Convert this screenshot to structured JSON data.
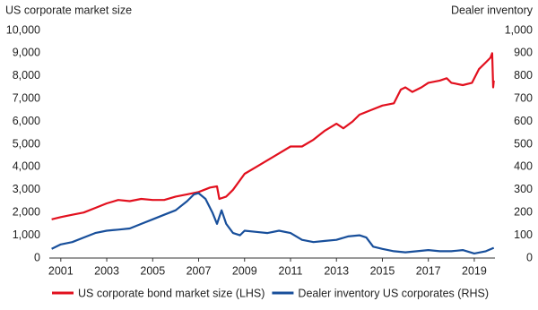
{
  "chart_data": {
    "type": "line",
    "y_label": "US corporate market size",
    "y2_label": "Dealer inventory",
    "xlim": [
      2000.5,
      2019.9
    ],
    "xticks": [
      2001,
      2003,
      2005,
      2007,
      2009,
      2011,
      2013,
      2015,
      2017,
      2019
    ],
    "ylim": [
      0,
      10000
    ],
    "yticks": [
      0,
      {
        "value": 1000,
        "label": "1,000"
      },
      {
        "value": 2000,
        "label": "2,000"
      },
      {
        "value": 3000,
        "label": "3,000"
      },
      {
        "value": 4000,
        "label": "4,000"
      },
      {
        "value": 5000,
        "label": "5,000"
      },
      {
        "value": 6000,
        "label": "6,000"
      },
      {
        "value": 7000,
        "label": "7,000"
      },
      {
        "value": 8000,
        "label": "8,000"
      },
      {
        "value": 9000,
        "label": "9,000"
      },
      {
        "value": 10000,
        "label": "10,000"
      }
    ],
    "y2lim": [
      0,
      1000
    ],
    "y2ticks": [
      0,
      100,
      200,
      300,
      400,
      500,
      600,
      700,
      800,
      900,
      {
        "value": 1000,
        "label": "1,000"
      }
    ],
    "grid": false,
    "series": [
      {
        "name": "US corporate bond market size (LHS)",
        "color": "#e2101e",
        "axis": "y",
        "x": [
          2000.6,
          2001,
          2001.5,
          2002,
          2002.5,
          2003,
          2003.5,
          2004,
          2004.5,
          2005,
          2005.5,
          2006,
          2006.5,
          2007,
          2007.5,
          2007.8,
          2007.9,
          2008.2,
          2008.5,
          2009,
          2009.5,
          2010,
          2010.5,
          2011,
          2011.5,
          2012,
          2012.5,
          2013,
          2013.3,
          2013.7,
          2014,
          2014.5,
          2015,
          2015.5,
          2015.8,
          2016,
          2016.3,
          2016.7,
          2017,
          2017.5,
          2017.8,
          2018,
          2018.5,
          2018.9,
          2019.2,
          2019.5,
          2019.7,
          2019.78,
          2019.82,
          2019.85
        ],
        "values": [
          1700,
          1800,
          1900,
          2000,
          2200,
          2400,
          2550,
          2500,
          2600,
          2550,
          2550,
          2700,
          2800,
          2900,
          3100,
          3150,
          2600,
          2700,
          3000,
          3700,
          4000,
          4300,
          4600,
          4900,
          4900,
          5200,
          5600,
          5900,
          5700,
          6000,
          6300,
          6500,
          6700,
          6800,
          7400,
          7500,
          7300,
          7500,
          7700,
          7800,
          7900,
          7700,
          7600,
          7700,
          8300,
          8600,
          8800,
          9000,
          7500,
          7800
        ]
      },
      {
        "name": "Dealer inventory US corporates (RHS)",
        "color": "#184f9b",
        "axis": "y2",
        "x": [
          2000.6,
          2001,
          2001.5,
          2002,
          2002.5,
          2003,
          2003.5,
          2004,
          2004.5,
          2005,
          2005.5,
          2006,
          2006.5,
          2006.8,
          2007,
          2007.3,
          2007.6,
          2007.8,
          2008,
          2008.2,
          2008.5,
          2008.8,
          2009,
          2009.5,
          2010,
          2010.5,
          2011,
          2011.5,
          2012,
          2012.5,
          2013,
          2013.5,
          2014,
          2014.3,
          2014.6,
          2015,
          2015.5,
          2016,
          2016.5,
          2017,
          2017.5,
          2018,
          2018.5,
          2019,
          2019.5,
          2019.85
        ],
        "values": [
          40,
          60,
          70,
          90,
          110,
          120,
          125,
          130,
          150,
          170,
          190,
          210,
          250,
          280,
          285,
          260,
          200,
          150,
          210,
          150,
          110,
          100,
          120,
          115,
          110,
          120,
          110,
          80,
          70,
          75,
          80,
          95,
          100,
          90,
          50,
          40,
          30,
          25,
          30,
          35,
          30,
          30,
          35,
          20,
          30,
          45
        ]
      }
    ]
  }
}
